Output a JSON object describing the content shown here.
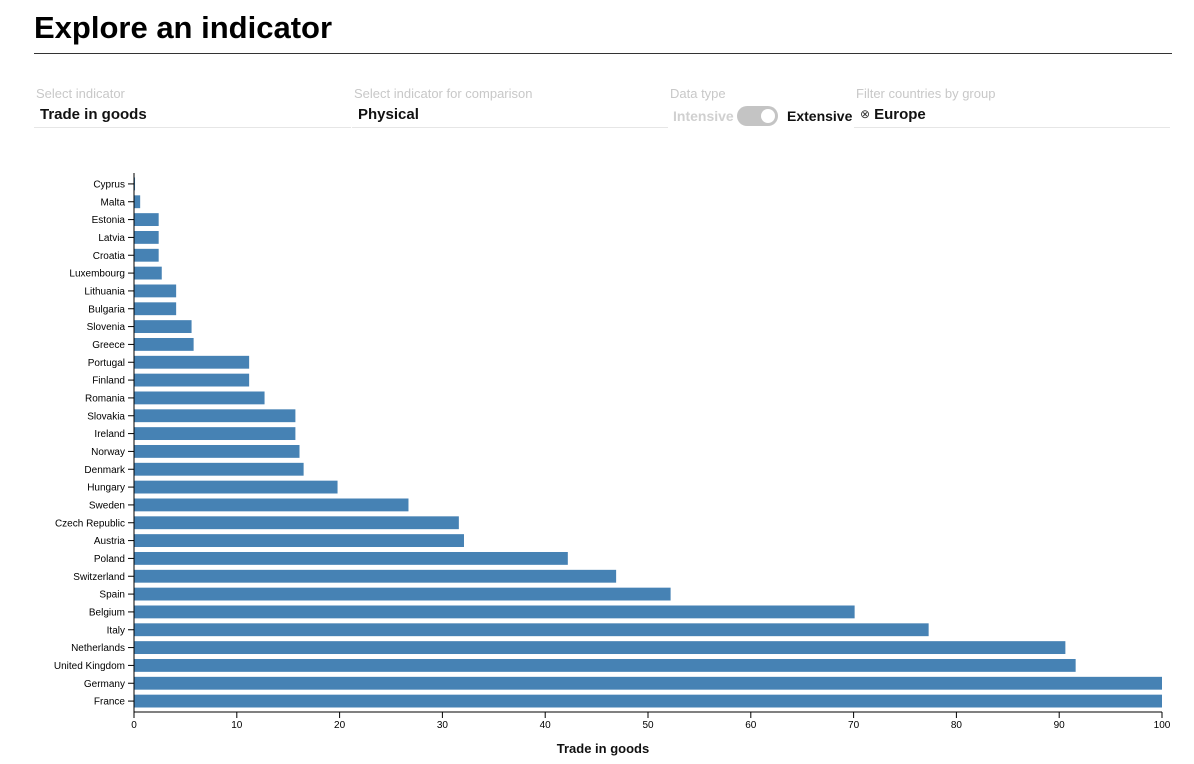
{
  "page": {
    "title": "Explore an indicator"
  },
  "controls": {
    "indicator": {
      "label": "Select indicator",
      "value": "Trade in goods"
    },
    "comparison": {
      "label": "Select indicator for comparison",
      "value": "Physical"
    },
    "data_type": {
      "label": "Data type",
      "off_label": "Intensive",
      "on_label": "Extensive",
      "selected": "Extensive"
    },
    "filter": {
      "label": "Filter countries by group",
      "chip_label": "Europe",
      "chip_icon": "close-circle-icon"
    }
  },
  "colors": {
    "bar": "#4682b4",
    "rule": "#333333"
  },
  "chart_data": {
    "type": "bar",
    "orientation": "horizontal",
    "categories": [
      "Cyprus",
      "Malta",
      "Estonia",
      "Latvia",
      "Croatia",
      "Luxembourg",
      "Lithuania",
      "Bulgaria",
      "Slovenia",
      "Greece",
      "Portugal",
      "Finland",
      "Romania",
      "Slovakia",
      "Ireland",
      "Norway",
      "Denmark",
      "Hungary",
      "Sweden",
      "Czech Republic",
      "Austria",
      "Poland",
      "Switzerland",
      "Spain",
      "Belgium",
      "Italy",
      "Netherlands",
      "United Kingdom",
      "Germany",
      "France"
    ],
    "values": [
      0.1,
      0.6,
      2.4,
      2.4,
      2.4,
      2.7,
      4.1,
      4.1,
      5.6,
      5.8,
      11.2,
      11.2,
      12.7,
      15.7,
      15.7,
      16.1,
      16.5,
      19.8,
      26.7,
      31.6,
      32.1,
      42.2,
      46.9,
      52.2,
      70.1,
      77.3,
      90.6,
      91.6,
      100,
      100
    ],
    "xlabel": "Trade in goods",
    "ylabel": "",
    "xlim": [
      0,
      100
    ],
    "xticks": [
      0,
      10,
      20,
      30,
      40,
      50,
      60,
      70,
      80,
      90,
      100
    ],
    "grid": false
  }
}
